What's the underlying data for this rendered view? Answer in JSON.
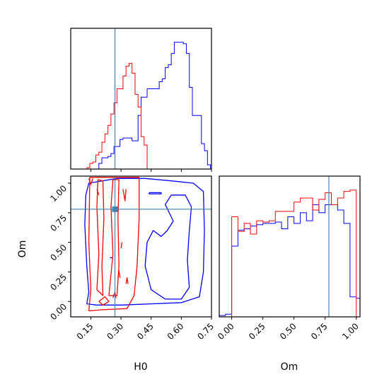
{
  "chart_data": {
    "type": "corner-plot",
    "parameters": [
      "H0",
      "Om"
    ],
    "truth": {
      "H0": 0.27,
      "Om": 0.78
    },
    "colors": {
      "blue": "#0000ff",
      "red": "#ff0000",
      "truth": "#4682b4"
    },
    "grid": false,
    "panels": {
      "h0_hist": {
        "xlim": [
          0.05,
          0.75
        ],
        "blue": {
          "edges": [
            0.1,
            0.115,
            0.13,
            0.145,
            0.16,
            0.175,
            0.19,
            0.205,
            0.22,
            0.235,
            0.25,
            0.265,
            0.28,
            0.295,
            0.31,
            0.325,
            0.34,
            0.355,
            0.37,
            0.385,
            0.4,
            0.415,
            0.43,
            0.445,
            0.46,
            0.475,
            0.49,
            0.505,
            0.52,
            0.535,
            0.55,
            0.565,
            0.58,
            0.595,
            0.61,
            0.625,
            0.64,
            0.655,
            0.67,
            0.685,
            0.7,
            0.715,
            0.73,
            0.745
          ],
          "counts": [
            0,
            0,
            0,
            0,
            0,
            0,
            4,
            8,
            8,
            9,
            11,
            16,
            16,
            21,
            22,
            22,
            22,
            20,
            20,
            38,
            51,
            51,
            57,
            57,
            57,
            57,
            62,
            64,
            72,
            74,
            82,
            90,
            90,
            90,
            89,
            82,
            58,
            38,
            38,
            38,
            18,
            13,
            3
          ]
        },
        "red": {
          "edges": [
            0.13,
            0.145,
            0.16,
            0.175,
            0.19,
            0.205,
            0.22,
            0.235,
            0.25,
            0.265,
            0.28,
            0.295,
            0.31,
            0.325,
            0.34,
            0.355,
            0.37,
            0.385,
            0.4,
            0.415,
            0.43
          ],
          "counts": [
            1,
            4,
            5,
            10,
            12,
            19,
            25,
            31,
            39,
            47,
            57,
            57,
            66,
            73,
            75,
            68,
            53,
            44,
            23,
            17
          ]
        }
      },
      "om_hist": {
        "xlim": [
          -0.1,
          1.03
        ],
        "blue": {
          "edges": [
            -0.1,
            -0.05,
            0.0,
            0.05,
            0.1,
            0.15,
            0.2,
            0.25,
            0.3,
            0.35,
            0.4,
            0.45,
            0.5,
            0.55,
            0.6,
            0.65,
            0.7,
            0.75,
            0.8,
            0.85,
            0.9,
            0.95,
            1.0,
            1.03
          ],
          "counts": [
            1,
            2,
            53,
            65,
            66,
            68,
            69,
            70,
            70,
            71,
            66,
            75,
            70,
            78,
            72,
            84,
            78,
            84,
            84,
            80,
            70,
            15,
            14
          ]
        },
        "red": {
          "edges": [
            0.0,
            0.05,
            0.1,
            0.15,
            0.2,
            0.25,
            0.3,
            0.35,
            0.4,
            0.45,
            0.5,
            0.55,
            0.6,
            0.65,
            0.7,
            0.75,
            0.8,
            0.85,
            0.9,
            0.95,
            1.0
          ],
          "counts": [
            75,
            64,
            70,
            62,
            72,
            71,
            72,
            79,
            79,
            79,
            86,
            89,
            89,
            80,
            88,
            93,
            84,
            89,
            94,
            95
          ]
        }
      },
      "joint": {
        "xlim": [
          0.05,
          0.75
        ],
        "ylim": [
          -0.13,
          1.06
        ],
        "blue_contours": [
          [
            [
              0.13,
              -0.02
            ],
            [
              0.14,
              0.08
            ],
            [
              0.13,
              0.3
            ],
            [
              0.12,
              0.65
            ],
            [
              0.125,
              0.9
            ],
            [
              0.14,
              1.0
            ],
            [
              0.28,
              1.04
            ],
            [
              0.42,
              1.04
            ],
            [
              0.55,
              1.02
            ],
            [
              0.66,
              1.0
            ],
            [
              0.71,
              0.93
            ],
            [
              0.715,
              0.6
            ],
            [
              0.71,
              0.25
            ],
            [
              0.69,
              0.04
            ],
            [
              0.6,
              -0.01
            ],
            [
              0.45,
              -0.02
            ],
            [
              0.3,
              -0.03
            ],
            [
              0.18,
              -0.03
            ],
            [
              0.13,
              -0.02
            ]
          ],
          [
            [
              0.52,
              0.02
            ],
            [
              0.45,
              0.1
            ],
            [
              0.42,
              0.3
            ],
            [
              0.43,
              0.5
            ],
            [
              0.46,
              0.6
            ],
            [
              0.5,
              0.55
            ],
            [
              0.53,
              0.6
            ],
            [
              0.56,
              0.68
            ],
            [
              0.52,
              0.82
            ],
            [
              0.55,
              0.9
            ],
            [
              0.62,
              0.9
            ],
            [
              0.65,
              0.8
            ],
            [
              0.64,
              0.6
            ],
            [
              0.63,
              0.35
            ],
            [
              0.64,
              0.12
            ],
            [
              0.6,
              0.02
            ],
            [
              0.52,
              0.02
            ]
          ],
          [
            [
              0.44,
              0.92
            ],
            [
              0.5,
              0.92
            ],
            [
              0.5,
              0.91
            ],
            [
              0.44,
              0.91
            ],
            [
              0.44,
              0.92
            ]
          ],
          [
            [
              0.245,
              0.37
            ],
            [
              0.26,
              0.37
            ]
          ]
        ],
        "red_contours": [
          [
            [
              0.14,
              -0.08
            ],
            [
              0.15,
              0.1
            ],
            [
              0.14,
              0.5
            ],
            [
              0.145,
              1.05
            ],
            [
              0.39,
              1.05
            ],
            [
              0.39,
              0.7
            ],
            [
              0.38,
              0.3
            ],
            [
              0.365,
              0.05
            ],
            [
              0.33,
              -0.06
            ],
            [
              0.2,
              -0.07
            ],
            [
              0.14,
              -0.08
            ]
          ],
          [
            [
              0.18,
              0.1
            ],
            [
              0.19,
              0.4
            ],
            [
              0.18,
              0.8
            ],
            [
              0.185,
              1.03
            ],
            [
              0.21,
              1.02
            ],
            [
              0.215,
              0.7
            ],
            [
              0.205,
              0.3
            ],
            [
              0.21,
              0.05
            ],
            [
              0.18,
              0.1
            ]
          ],
          [
            [
              0.24,
              0.05
            ],
            [
              0.26,
              0.4
            ],
            [
              0.25,
              0.8
            ],
            [
              0.26,
              1.03
            ],
            [
              0.29,
              1.03
            ],
            [
              0.285,
              0.7
            ],
            [
              0.29,
              0.3
            ],
            [
              0.28,
              0.05
            ],
            [
              0.24,
              0.05
            ]
          ],
          [
            [
              0.19,
              0.0
            ],
            [
              0.22,
              0.04
            ],
            [
              0.24,
              0.0
            ],
            [
              0.21,
              -0.03
            ],
            [
              0.19,
              0.0
            ]
          ],
          [
            [
              0.14,
              1.04
            ],
            [
              0.15,
              0.99
            ],
            [
              0.16,
              1.04
            ]
          ],
          [
            [
              0.26,
              0.03
            ],
            [
              0.27,
              0.08
            ],
            [
              0.275,
              0.03
            ]
          ],
          [
            [
              0.285,
              0.2
            ],
            [
              0.29,
              0.26
            ],
            [
              0.295,
              0.2
            ]
          ],
          [
            [
              0.325,
              0.15
            ],
            [
              0.33,
              0.2
            ],
            [
              0.335,
              0.15
            ]
          ],
          [
            [
              0.31,
              0.95
            ],
            [
              0.32,
              0.85
            ],
            [
              0.325,
              0.95
            ]
          ],
          [
            [
              0.3,
              0.45
            ],
            [
              0.305,
              0.5
            ]
          ],
          [
            [
              0.18,
              0.95
            ],
            [
              0.19,
              0.9
            ]
          ]
        ]
      }
    },
    "ticks": {
      "h0": [
        0.15,
        0.3,
        0.45,
        0.6,
        0.75
      ],
      "h0_labels": [
        "0.15",
        "0.30",
        "0.45",
        "0.60",
        "0.75"
      ],
      "om_y": [
        0.0,
        0.25,
        0.5,
        0.75,
        1.0
      ],
      "om_y_labels": [
        "0.00",
        "0.25",
        "0.50",
        "0.75",
        "1.00"
      ],
      "om_x": [
        0.0,
        0.25,
        0.5,
        0.75,
        1.0
      ],
      "om_x_labels": [
        "0.00",
        "0.25",
        "0.50",
        "0.75",
        "1.00"
      ]
    },
    "axis_labels": {
      "joint_x": "H0",
      "joint_y": "Om",
      "om_hist_x": "Om"
    }
  }
}
